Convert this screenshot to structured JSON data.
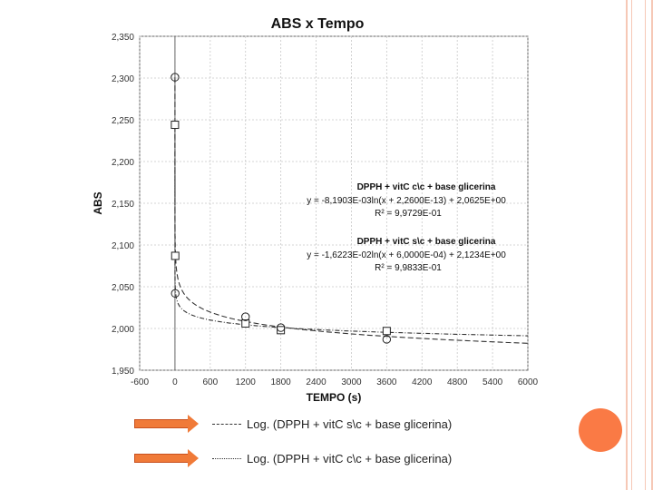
{
  "chart_data": {
    "type": "scatter",
    "title": "ABS x Tempo",
    "xlabel": "TEMPO (s)",
    "ylabel": "ABS",
    "xlim": [
      -600,
      6000
    ],
    "ylim": [
      1.95,
      2.35
    ],
    "x_ticks": [
      "-600",
      "0",
      "600",
      "1200",
      "1800",
      "2400",
      "3000",
      "3600",
      "4200",
      "4800",
      "5400",
      "6000"
    ],
    "y_ticks": [
      "1,950",
      "2,000",
      "2,050",
      "2,100",
      "2,150",
      "2,200",
      "2,250",
      "2,300",
      "2,350"
    ],
    "grid": true,
    "series": [
      {
        "name": "DPPH + vitC c\\c + base glicerina",
        "marker": "square",
        "points": [
          {
            "x": 0,
            "y": 2.244
          },
          {
            "x": 5,
            "y": 2.087
          },
          {
            "x": 1200,
            "y": 2.006
          },
          {
            "x": 1800,
            "y": 1.998
          },
          {
            "x": 3600,
            "y": 1.997
          }
        ],
        "fit": {
          "a": -0.0081903,
          "c": 2.0625,
          "style": "dash-dot"
        }
      },
      {
        "name": "DPPH + vitC s\\c + base glicerina",
        "marker": "circle",
        "points": [
          {
            "x": 0,
            "y": 2.301
          },
          {
            "x": 5,
            "y": 2.042
          },
          {
            "x": 1200,
            "y": 2.014
          },
          {
            "x": 1800,
            "y": 2.001
          },
          {
            "x": 3600,
            "y": 1.987
          }
        ],
        "fit": {
          "a": -0.016223,
          "c": 2.1234,
          "style": "dashed"
        }
      }
    ],
    "annotations": [
      {
        "title": "DPPH + vitC c\\c + base glicerina",
        "equation": "y = -8,1903E-03ln(x + 2,2600E-13) + 2,0625E+00",
        "r2": "R² = 9,9729E-01"
      },
      {
        "title": "DPPH + vitC s\\c + base glicerina",
        "equation": "y = -1,6223E-02ln(x + 6,0000E-04) + 2,1234E+00",
        "r2": "R² = 9,9833E-01"
      }
    ]
  },
  "legend": [
    {
      "label": "Log. (DPPH + vitC s\\c + base glicerina)",
      "style": "dashed"
    },
    {
      "label": "Log. (DPPH + vitC c\\c + base glicerina)",
      "style": "dash-dot"
    }
  ],
  "colors": {
    "arrow": "#f07a38",
    "circle": "#fa7a45",
    "rail": "#f6c8b6"
  }
}
